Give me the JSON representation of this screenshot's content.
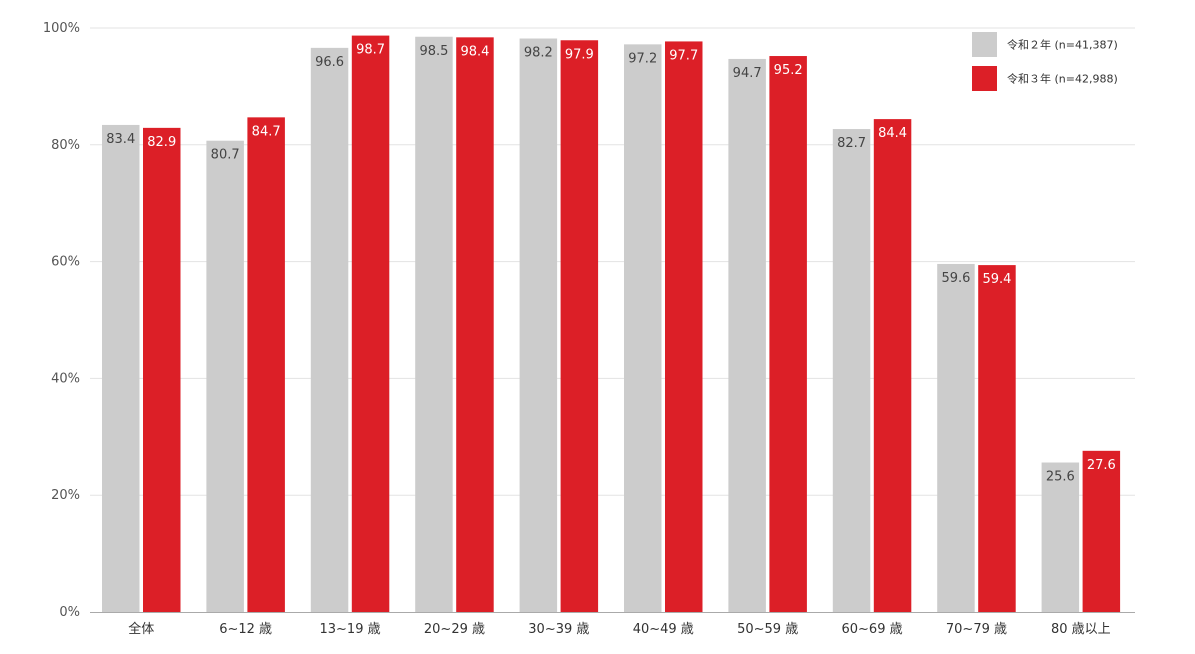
{
  "colors": {
    "series_1": "#cccccc",
    "series_2": "#dc1f27",
    "gridline": "#e3e3e3",
    "axis": "#aaaaaa",
    "value_label_on_gray": "#444444",
    "value_label_on_red": "#ffffff"
  },
  "chart_data": {
    "type": "bar",
    "title": "",
    "xlabel": "",
    "ylabel": "",
    "categories": [
      "全体",
      "6~12 歳",
      "13~19 歳",
      "20~29 歳",
      "30~39 歳",
      "40~49 歳",
      "50~59 歳",
      "60~69 歳",
      "70~79 歳",
      "80 歳以上"
    ],
    "series": [
      {
        "name": "令和２年 (n=41,387)",
        "values": [
          83.4,
          80.7,
          96.6,
          98.5,
          98.2,
          97.2,
          94.7,
          82.7,
          59.6,
          25.6
        ],
        "labels": [
          "83.4",
          "80.7",
          "96.6",
          "98.5",
          "98.2",
          "97.2",
          "94.7",
          "82.7",
          "59.6",
          "25.6"
        ]
      },
      {
        "name": "令和３年 (n=42,988)",
        "values": [
          82.9,
          84.7,
          98.7,
          98.4,
          97.9,
          97.7,
          95.2,
          84.4,
          59.4,
          27.6
        ],
        "labels": [
          "82.9",
          "84.7",
          "98.7",
          "98.4",
          "97.9",
          "97.7",
          "95.2",
          "84.4",
          "59.4",
          "27.6"
        ]
      }
    ],
    "ylim": [
      0,
      100
    ],
    "yticks": [
      0,
      20,
      40,
      60,
      80,
      100
    ],
    "ytick_labels": [
      "0%",
      "20%",
      "40%",
      "60%",
      "80%",
      "100%"
    ],
    "grid": true,
    "legend": "top-right"
  }
}
